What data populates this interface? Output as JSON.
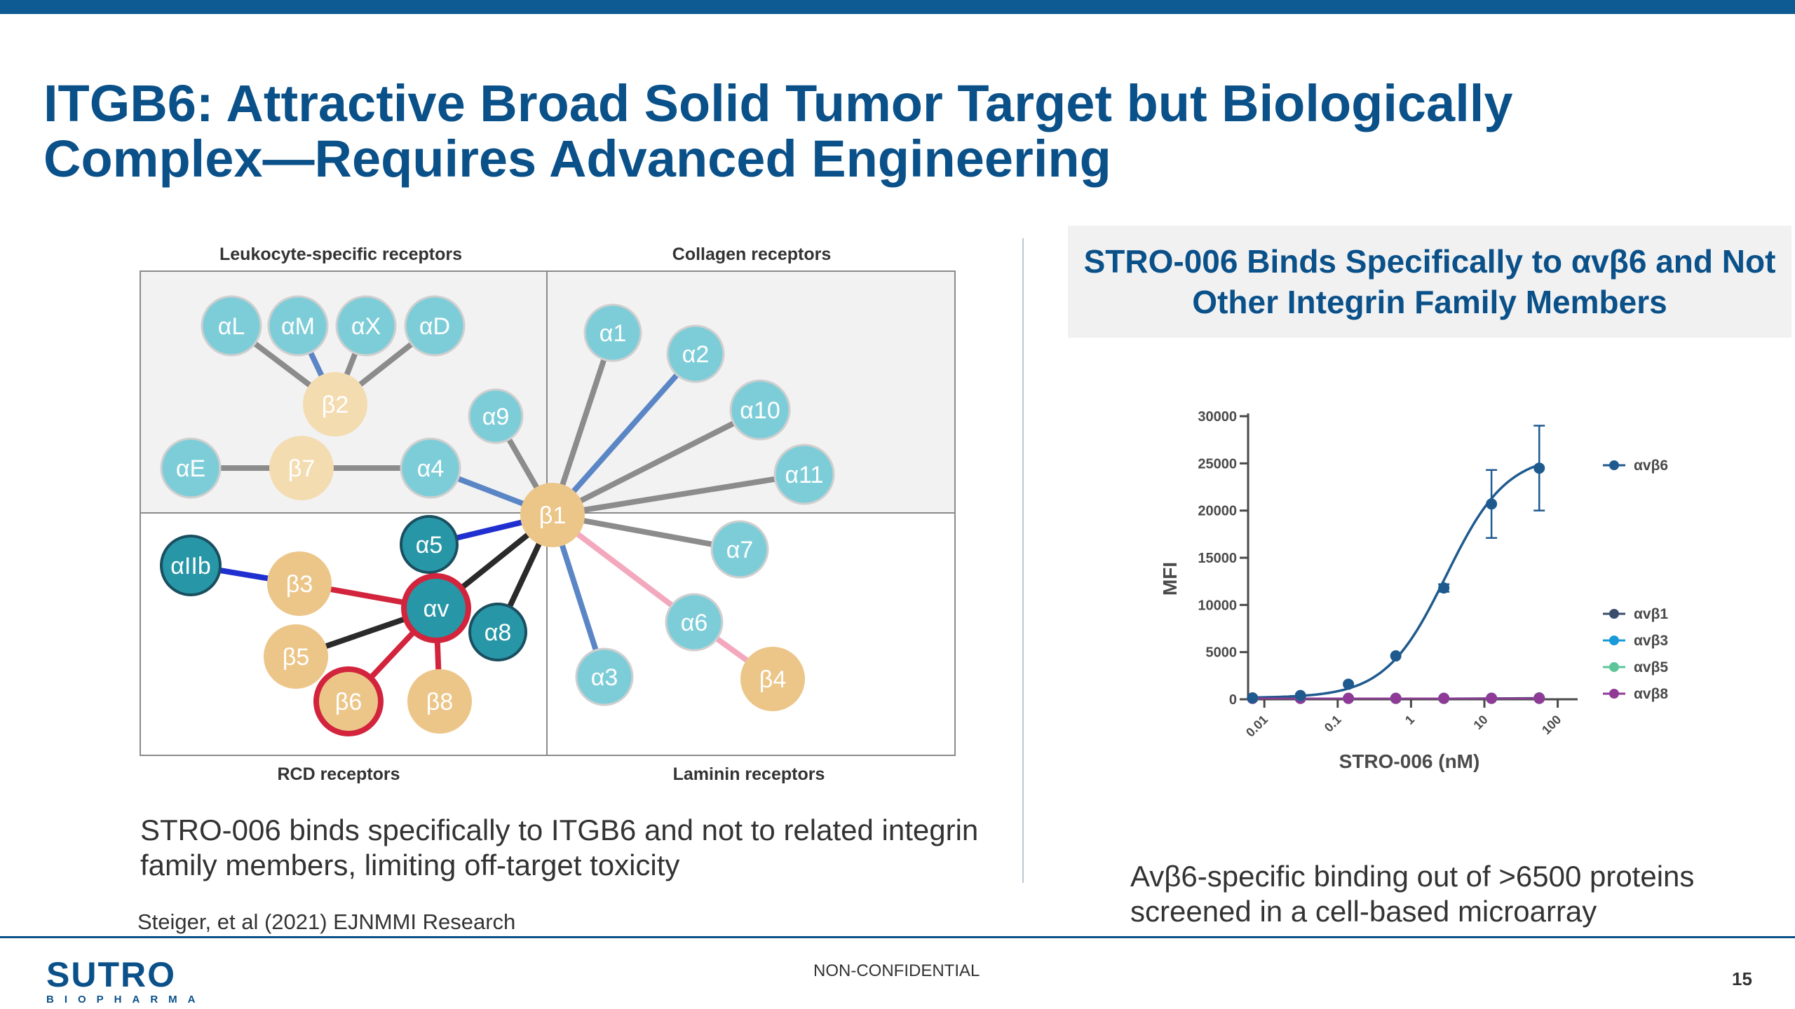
{
  "slide": {
    "title": "ITGB6: Attractive Broad Solid Tumor Target but Biologically Complex—Requires Advanced Engineering",
    "page_number": "15",
    "footer_label": "NON-CONFIDENTIAL",
    "logo_name": "SUTRO",
    "logo_sub": "BIOPHARMA",
    "colors": {
      "brand": "#0a5089",
      "top_bar": "#0e5a92",
      "light_node": "#7dcdd9",
      "dark_node": "#2796a6",
      "beta_node": "#ecc689",
      "highlight": "#d2243c"
    }
  },
  "diagram": {
    "quadrant_labels": {
      "top_left": "Leukocyte-specific receptors",
      "top_right": "Collagen receptors",
      "bottom_left": "RCD receptors",
      "bottom_right": "Laminin receptors"
    },
    "nodes": {
      "aL": "αL",
      "aM": "αM",
      "aX": "αX",
      "aD": "αD",
      "b2": "β2",
      "aE": "αE",
      "b7": "β7",
      "a4": "α4",
      "a9": "α9",
      "b1": "β1",
      "a1": "α1",
      "a2": "α2",
      "a10": "α10",
      "a11": "α11",
      "a7": "α7",
      "a6": "α6",
      "b4": "β4",
      "a3": "α3",
      "aIIb": "αIIb",
      "b3": "β3",
      "a5": "α5",
      "av": "αv",
      "a8": "α8",
      "b5": "β5",
      "b6": "β6",
      "b8": "β8"
    }
  },
  "left_caption": "STRO-006 binds specifically to ITGB6 and not to related integrin family members, limiting off-target toxicity",
  "citation": "Steiger, et al (2021) EJNMMI Research",
  "right_panel": {
    "box_title": "STRO-006 Binds Specifically to αvβ6 and Not Other Integrin Family Members",
    "note": "Avβ6-specific binding out of >6500 proteins screened in a cell-based microarray"
  },
  "chart_data": {
    "type": "scatter",
    "xlabel": "STRO-006 (nM)",
    "ylabel": "MFI",
    "x_scale": "log",
    "xlim": [
      0.006,
      150
    ],
    "ylim": [
      0,
      30000
    ],
    "x_ticks": [
      0.01,
      0.1,
      1,
      10,
      100
    ],
    "x_tick_labels": [
      "0.01",
      "0.1",
      "1",
      "10",
      "100"
    ],
    "y_ticks": [
      0,
      5000,
      10000,
      15000,
      20000,
      25000,
      30000
    ],
    "y_tick_labels": [
      "0",
      "5000",
      "10000",
      "15000",
      "20000",
      "25000",
      "30000"
    ],
    "x": [
      0.0069,
      0.031,
      0.14,
      0.62,
      2.8,
      12.5,
      56
    ],
    "series": [
      {
        "name": "αvβ6",
        "color": "#1f5a8f",
        "values": [
          150,
          400,
          1600,
          4600,
          11800,
          20700,
          24500
        ],
        "errors": [
          0,
          0,
          0,
          0,
          400,
          3600,
          4500
        ],
        "fit_curve": true
      },
      {
        "name": "αvβ1",
        "color": "#3a4d6b",
        "values": [
          100,
          100,
          100,
          100,
          100,
          120,
          150
        ],
        "fit_curve": false
      },
      {
        "name": "αvβ3",
        "color": "#1a9ad9",
        "values": [
          100,
          100,
          100,
          100,
          100,
          100,
          100
        ],
        "fit_curve": false
      },
      {
        "name": "αvβ5",
        "color": "#5ec59a",
        "values": [
          100,
          100,
          100,
          100,
          100,
          100,
          100
        ],
        "fit_curve": false
      },
      {
        "name": "αvβ8",
        "color": "#8e3a96",
        "values": [
          100,
          100,
          100,
          100,
          100,
          100,
          100
        ],
        "fit_curve": false
      }
    ],
    "curve_fit": {
      "bottom": 150,
      "top": 26000,
      "ec50": 3.0,
      "hill": 1.05
    }
  }
}
